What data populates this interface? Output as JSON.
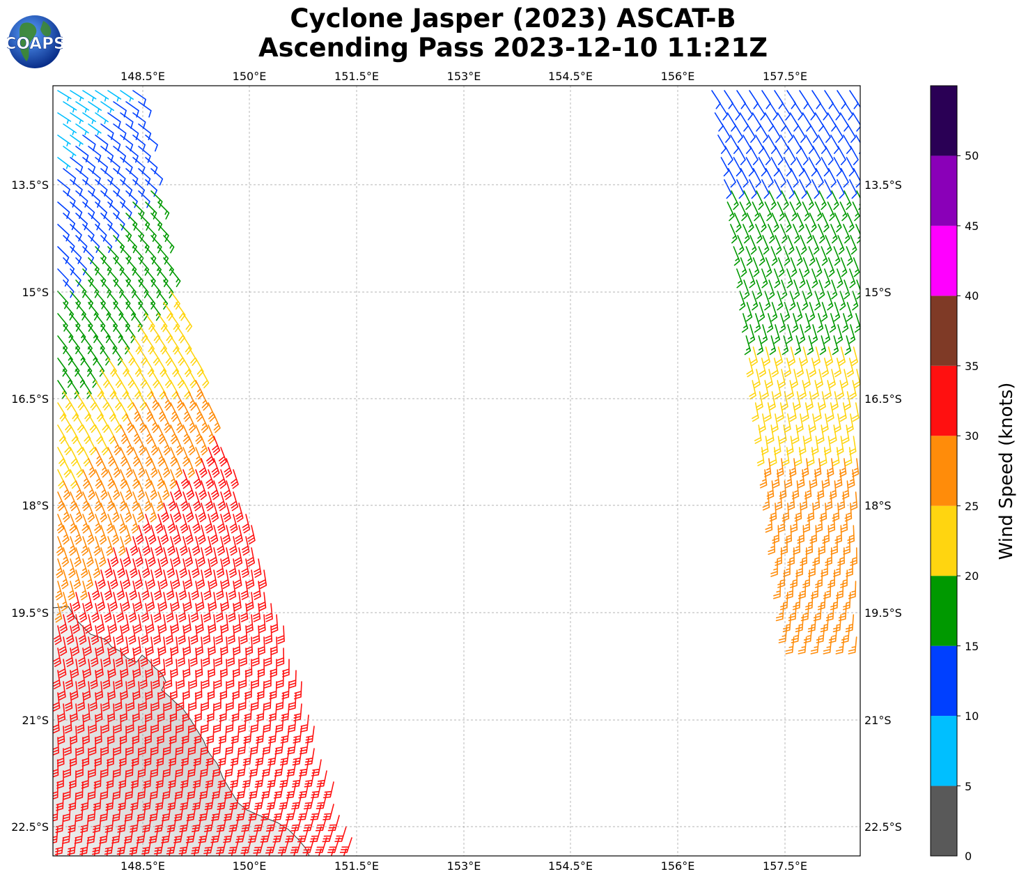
{
  "title": {
    "line1": "Cyclone Jasper (2023) ASCAT-B",
    "line2": "Ascending Pass 2023-12-10 11:21Z"
  },
  "logo": {
    "text": "COAPS",
    "icon": "globe-icon"
  },
  "map": {
    "lon_ticks": [
      "148.5°E",
      "150°E",
      "151.5°E",
      "153°E",
      "154.5°E",
      "156°E",
      "157.5°E"
    ],
    "lat_ticks": [
      "13.5°S",
      "15°S",
      "16.5°S",
      "18°S",
      "19.5°S",
      "21°S",
      "22.5°S"
    ],
    "grid": true,
    "symbol": "wind barbs",
    "swaths": [
      "west swath (147.3°E–151.9°E)",
      "east swath (156.5°E–158.6°E)"
    ],
    "land": "Queensland coast (lower left)"
  },
  "colorbar": {
    "label": "Wind Speed (knots)",
    "tick_labels": [
      "0",
      "5",
      "10",
      "15",
      "20",
      "25",
      "30",
      "35",
      "40",
      "45",
      "50"
    ],
    "bins": [
      {
        "min": 0,
        "max": 5,
        "color": "#595959"
      },
      {
        "min": 5,
        "max": 10,
        "color": "#00bfff"
      },
      {
        "min": 10,
        "max": 15,
        "color": "#0040ff"
      },
      {
        "min": 15,
        "max": 20,
        "color": "#009900"
      },
      {
        "min": 20,
        "max": 25,
        "color": "#ffd510"
      },
      {
        "min": 25,
        "max": 30,
        "color": "#ff8c0a"
      },
      {
        "min": 30,
        "max": 35,
        "color": "#ff1010"
      },
      {
        "min": 35,
        "max": 40,
        "color": "#7f3a26"
      },
      {
        "min": 40,
        "max": 45,
        "color": "#ff00ff"
      },
      {
        "min": 45,
        "max": 50,
        "color": "#8a00b8"
      },
      {
        "min": 50,
        "max": 55,
        "color": "#2a0055"
      }
    ]
  }
}
